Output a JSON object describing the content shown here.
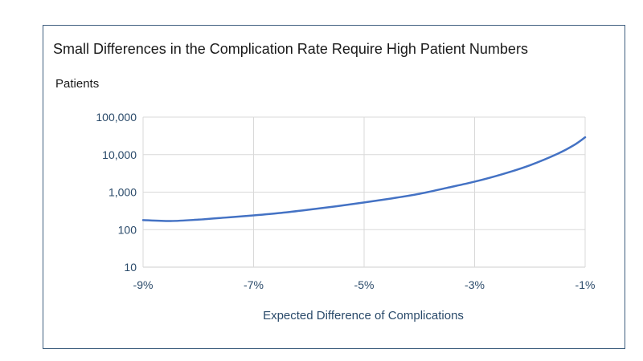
{
  "chart_data": {
    "type": "line",
    "title": "Small Differences in the Complication Rate Require High Patient Numbers",
    "ylabel": "Patients",
    "xlabel": "Expected Difference of Complications",
    "x_ticks": [
      {
        "value": -9,
        "label": "-9%"
      },
      {
        "value": -7,
        "label": "-7%"
      },
      {
        "value": -5,
        "label": "-5%"
      },
      {
        "value": -3,
        "label": "-3%"
      },
      {
        "value": -1,
        "label": "-1%"
      }
    ],
    "y_ticks": [
      {
        "value": 10,
        "label": "10"
      },
      {
        "value": 100,
        "label": "100"
      },
      {
        "value": 1000,
        "label": "1,000"
      },
      {
        "value": 10000,
        "label": "10,000"
      },
      {
        "value": 100000,
        "label": "100,000"
      }
    ],
    "xlim": [
      -9,
      -1
    ],
    "ylim": [
      10,
      100000
    ],
    "y_scale": "log",
    "grid": "vertical and horizontal",
    "line_color": "#4472c4",
    "series": [
      {
        "x": [
          -9,
          -8.5,
          -8,
          -7.5,
          -7,
          -6.5,
          -6,
          -5.5,
          -5,
          -4.5,
          -4,
          -3.5,
          -3,
          -2.5,
          -2,
          -1.5,
          -1.2,
          -1
        ],
        "y": [
          180,
          170,
          185,
          210,
          240,
          280,
          340,
          420,
          530,
          680,
          900,
          1300,
          1900,
          3000,
          5200,
          10500,
          18000,
          29000
        ]
      }
    ]
  }
}
